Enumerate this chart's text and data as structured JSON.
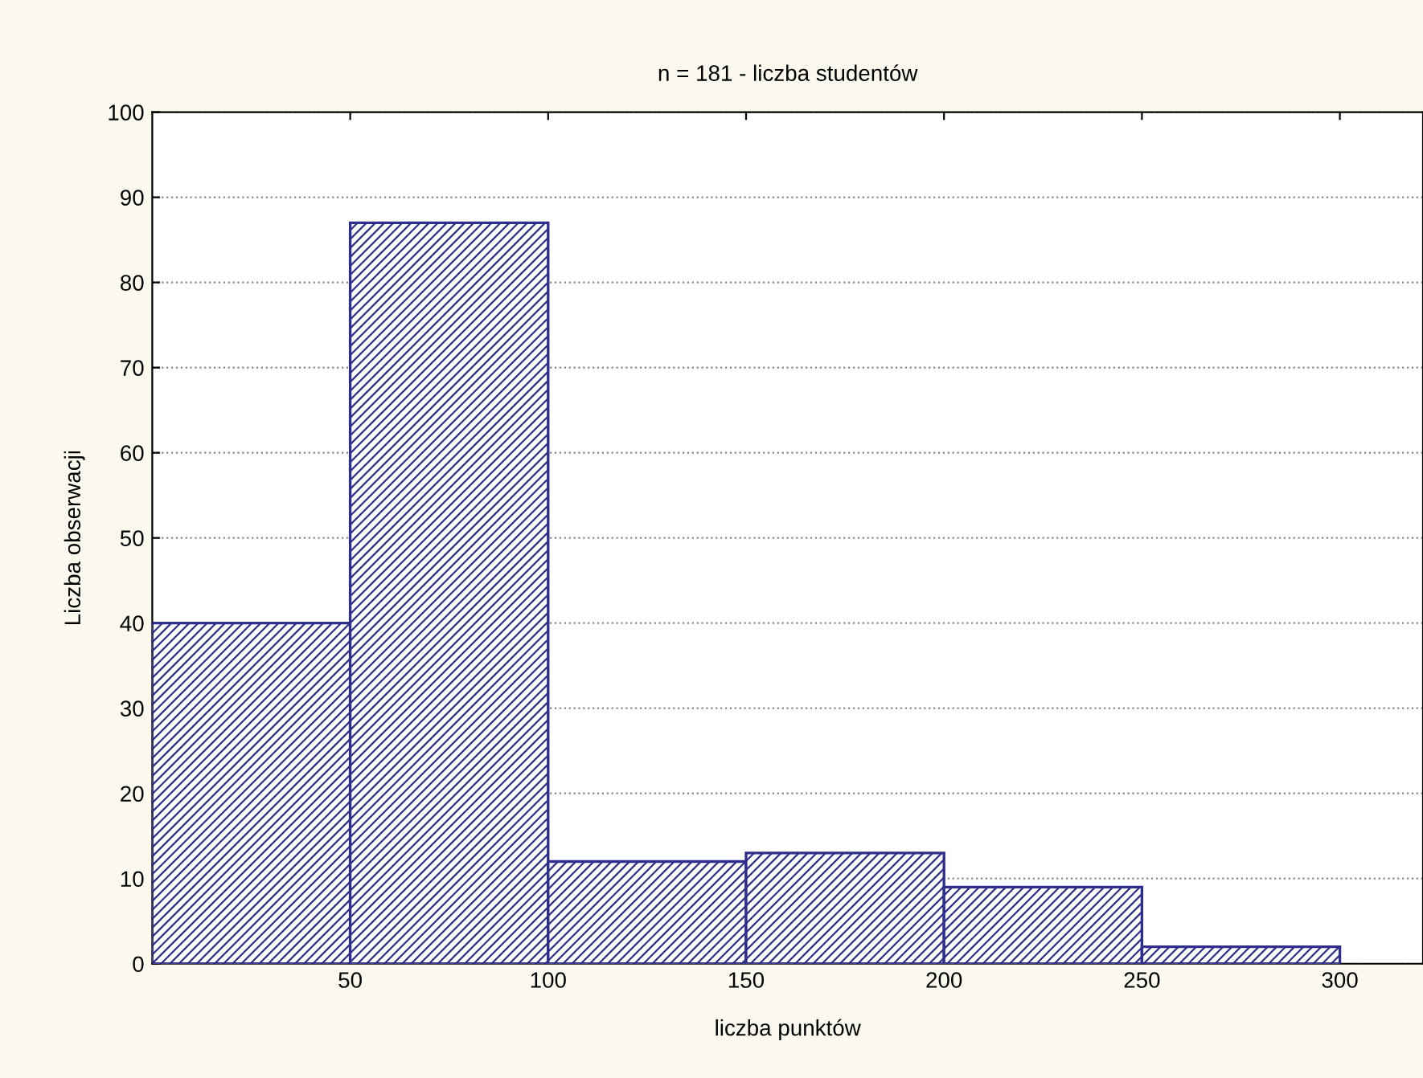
{
  "chart_data": {
    "type": "histogram",
    "title": "n = 181 - liczba studentów",
    "xlabel": "liczba punktów",
    "ylabel": "Liczba obserwacji",
    "bins": [
      0,
      50,
      100,
      150,
      200,
      250,
      300
    ],
    "values": [
      40,
      87,
      12,
      13,
      9,
      2
    ],
    "color": "#2e2e8c",
    "xlim": [
      0,
      321
    ],
    "xticks": [
      50,
      100,
      150,
      200,
      250,
      300
    ],
    "ylim": [
      0,
      100
    ],
    "yticks": [
      0,
      10,
      20,
      30,
      40,
      50,
      60,
      70,
      80,
      90,
      100
    ],
    "grid": "y"
  }
}
